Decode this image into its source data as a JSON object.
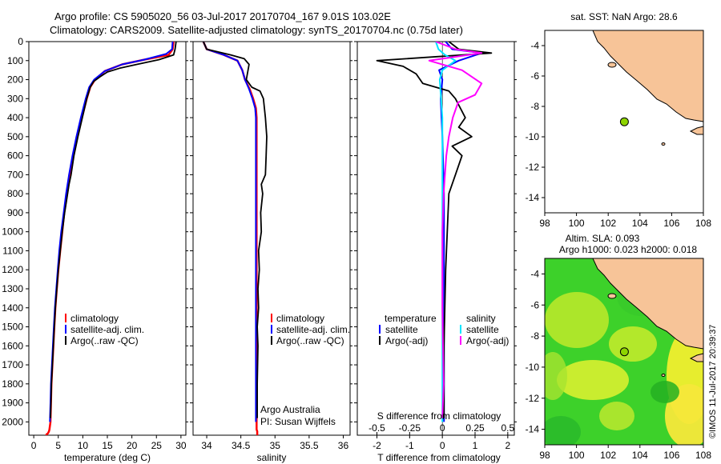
{
  "title_line1": "Argo profile: CS 5905020_56 03-Jul-2017 20170704_167 9.01S 103.02E",
  "title_line2": "Climatology: CARS2009. Satellite-adjusted climatology: synTS_20170704.nc (0.75d later)",
  "watermark": "©IMOS 11-Jul-2017 20:39:37",
  "colors": {
    "climatology": "#ff0000",
    "satellite": "#0000ff",
    "argo": "#000000",
    "salinity_satellite": "#00e5ff",
    "salinity_argo": "#ff00ff",
    "land": "#f7c498",
    "marker": "#8ed400"
  },
  "chart_data": [
    {
      "type": "line",
      "panel": "temperature",
      "xlabel": "temperature (deg C)",
      "ylabel": "",
      "xlim": [
        -1,
        31
      ],
      "ylim": [
        2070,
        0
      ],
      "xticks": [
        0,
        5,
        10,
        15,
        20,
        25,
        30
      ],
      "yticks": [
        0,
        100,
        200,
        300,
        400,
        500,
        600,
        700,
        800,
        900,
        1000,
        1100,
        1200,
        1300,
        1400,
        1500,
        1600,
        1700,
        1800,
        1900,
        2000
      ],
      "legend": [
        "climatology",
        "satellite-adj. clim.",
        "Argo(..raw -QC)"
      ],
      "legend_placement": "lower-middle",
      "series": [
        {
          "name": "climatology",
          "color_key": "climatology",
          "x": [
            28.5,
            28.3,
            27.5,
            22.5,
            18.0,
            14.5,
            12.5,
            11.5,
            10.8,
            9.8,
            8.9,
            8.1,
            7.4,
            6.8,
            6.2,
            5.8,
            5.4,
            5.0,
            4.7,
            4.4,
            4.2,
            4.0,
            3.8,
            3.6,
            3.5,
            3.4,
            3.2,
            3.1,
            3.0,
            2.9,
            2.8,
            2.7,
            2.6,
            2.6
          ],
          "y": [
            0,
            40,
            70,
            95,
            120,
            155,
            200,
            240,
            300,
            400,
            500,
            600,
            700,
            800,
            900,
            1000,
            1100,
            1200,
            1300,
            1400,
            1500,
            1600,
            1700,
            1800,
            1900,
            2000,
            2040,
            2050,
            2055,
            2060,
            2062,
            2064,
            2066,
            2070
          ]
        },
        {
          "name": "satellite-adj. clim.",
          "color_key": "satellite",
          "x": [
            28.3,
            28.2,
            27.0,
            22.5,
            18.0,
            14.5,
            12.3,
            11.3,
            10.6,
            9.6,
            8.7,
            7.9,
            7.2,
            6.6,
            6.1,
            5.6,
            5.2,
            4.9,
            4.6,
            4.3,
            4.1,
            3.9,
            3.7,
            3.5,
            3.4,
            3.3
          ],
          "y": [
            0,
            40,
            65,
            95,
            120,
            155,
            200,
            240,
            300,
            400,
            500,
            600,
            700,
            800,
            900,
            1000,
            1100,
            1200,
            1300,
            1400,
            1500,
            1600,
            1700,
            1800,
            1900,
            2000
          ]
        },
        {
          "name": "Argo(..raw -QC)",
          "color_key": "argo",
          "x": [
            29.0,
            28.8,
            28.5,
            25.5,
            21.0,
            17.5,
            15.0,
            13.5,
            12.2,
            11.5,
            10.8,
            9.9,
            9.0,
            8.2,
            7.6,
            7.2,
            6.3,
            5.8,
            5.4,
            5.0,
            4.7,
            4.4,
            4.2,
            4.0,
            3.8,
            3.6,
            3.5,
            3.4
          ],
          "y": [
            0,
            40,
            70,
            95,
            120,
            140,
            160,
            185,
            210,
            240,
            300,
            400,
            500,
            600,
            700,
            750,
            900,
            1000,
            1100,
            1200,
            1300,
            1400,
            1500,
            1600,
            1700,
            1800,
            1900,
            1980
          ]
        }
      ]
    },
    {
      "type": "line",
      "panel": "salinity",
      "xlabel": "salinity",
      "xlim": [
        33.8,
        36.1
      ],
      "ylim": [
        2070,
        0
      ],
      "xticks": [
        34,
        34.5,
        35,
        35.5,
        36
      ],
      "legend": [
        "climatology",
        "satellite-adj. clim.",
        "Argo(..raw -QC)"
      ],
      "legend_placement": "lower-middle",
      "annotations": [
        "Argo Australia",
        "PI: Susan Wijffels"
      ],
      "series": [
        {
          "name": "climatology",
          "color_key": "climatology",
          "x": [
            33.95,
            34.0,
            34.25,
            34.45,
            34.52,
            34.56,
            34.63,
            34.68,
            34.72,
            34.73,
            34.73,
            34.73,
            34.73,
            34.73,
            34.73,
            34.73,
            34.73,
            34.73,
            34.73,
            34.74,
            34.74,
            34.74
          ],
          "y": [
            0,
            40,
            70,
            100,
            150,
            200,
            250,
            300,
            350,
            400,
            600,
            800,
            1000,
            1200,
            1400,
            1600,
            1800,
            2000,
            2040,
            2050,
            2060,
            2070
          ]
        },
        {
          "name": "satellite-adj. clim.",
          "color_key": "satellite",
          "x": [
            33.95,
            34.0,
            34.25,
            34.45,
            34.52,
            34.56,
            34.62,
            34.67,
            34.71,
            34.72,
            34.72,
            34.72,
            34.72,
            34.72,
            34.72,
            34.72,
            34.72,
            34.72
          ],
          "y": [
            0,
            40,
            70,
            100,
            150,
            200,
            250,
            300,
            350,
            400,
            600,
            800,
            1000,
            1200,
            1400,
            1600,
            1800,
            2000
          ]
        },
        {
          "name": "Argo(..raw -QC)",
          "color_key": "argo",
          "x": [
            33.95,
            34.0,
            34.35,
            34.55,
            34.62,
            34.58,
            34.66,
            34.78,
            34.83,
            34.86,
            34.88,
            34.87,
            34.86,
            34.8,
            34.82,
            34.79,
            34.8,
            34.76,
            34.77,
            34.75,
            34.76,
            34.74,
            34.75,
            34.74,
            34.74
          ],
          "y": [
            0,
            40,
            70,
            90,
            120,
            200,
            240,
            260,
            300,
            400,
            500,
            600,
            700,
            750,
            800,
            900,
            1000,
            1100,
            1200,
            1300,
            1400,
            1500,
            1600,
            1800,
            1980
          ]
        }
      ]
    },
    {
      "type": "line",
      "panel": "differences",
      "xlabel": "T difference from climatology",
      "xlabel_top": "S difference from climatology",
      "xlim": [
        -2.6,
        2.2
      ],
      "ylim": [
        2070,
        0
      ],
      "xticks": [
        -2,
        -1,
        0,
        1,
        2
      ],
      "xticks_top": [
        -0.5,
        -0.25,
        0,
        0.25,
        0.5
      ],
      "legend_left_title": "temperature",
      "legend_right_title": "salinity",
      "legend_left": [
        "satellite",
        "Argo(-adj)"
      ],
      "legend_right": [
        "satellite",
        "Argo(-adj)"
      ],
      "series": [
        {
          "name": "satellite",
          "quantity": "temperature",
          "color_key": "satellite",
          "x": [
            0.1,
            0.3,
            1.2,
            0.5,
            -0.1,
            0.0,
            -0.05,
            0.0,
            0.05,
            0.05,
            0.05,
            0.05
          ],
          "y": [
            0,
            40,
            60,
            100,
            150,
            200,
            300,
            500,
            800,
            1200,
            1600,
            2000
          ]
        },
        {
          "name": "Argo(-adj)",
          "quantity": "temperature",
          "color_key": "argo",
          "x": [
            0.2,
            0.5,
            1.5,
            -2.0,
            -1.2,
            -0.8,
            -0.6,
            0.2,
            0.4,
            0.7,
            0.5,
            0.9,
            0.3,
            0.6,
            0.4,
            0.2,
            0.15,
            0.1,
            0.05,
            0.05
          ],
          "y": [
            0,
            40,
            60,
            100,
            130,
            170,
            220,
            260,
            300,
            400,
            450,
            500,
            550,
            600,
            700,
            800,
            1000,
            1200,
            1600,
            1980
          ]
        },
        {
          "name": "satellite",
          "quantity": "salinity",
          "color_key": "salinity_satellite",
          "x": [
            -0.05,
            -0.03,
            0.02,
            0.1,
            0.0,
            -0.02,
            0.0,
            0.0,
            0.0,
            0.0,
            0.0
          ],
          "y": [
            0,
            40,
            70,
            100,
            150,
            200,
            400,
            800,
            1200,
            1600,
            2000
          ]
        },
        {
          "name": "Argo(-adj)",
          "quantity": "salinity",
          "color_key": "salinity_argo",
          "x": [
            -0.05,
            0.1,
            0.3,
            -0.1,
            0.15,
            0.3,
            0.25,
            0.12,
            0.08,
            0.05,
            0.03,
            0.02,
            0.01,
            0.0,
            0.0,
            0.01,
            0.0
          ],
          "y": [
            0,
            40,
            60,
            100,
            150,
            220,
            280,
            320,
            400,
            500,
            600,
            700,
            800,
            1000,
            1400,
            1800,
            1980
          ]
        }
      ]
    },
    {
      "type": "scatter",
      "panel": "map-sst",
      "title": "sat. SST: NaN Argo: 28.6",
      "xlim": [
        98,
        108
      ],
      "ylim": [
        -15,
        -3
      ],
      "xticks": [
        98,
        100,
        102,
        104,
        106,
        108
      ],
      "yticks": [
        -4,
        -6,
        -8,
        -10,
        -12,
        -14
      ],
      "points": [
        {
          "x": 103.02,
          "y": -9.01
        }
      ]
    },
    {
      "type": "heatmap",
      "panel": "map-sla",
      "title_line1": "Altim. SLA: 0.093",
      "title_line2": "Argo h1000: 0.023 h2000: 0.018",
      "xlim": [
        98,
        108
      ],
      "ylim": [
        -15,
        -3
      ],
      "xticks": [
        98,
        100,
        102,
        104,
        106,
        108
      ],
      "yticks": [
        -4,
        -6,
        -8,
        -10,
        -12,
        -14
      ],
      "points": [
        {
          "x": 103.02,
          "y": -9.01
        }
      ]
    }
  ]
}
